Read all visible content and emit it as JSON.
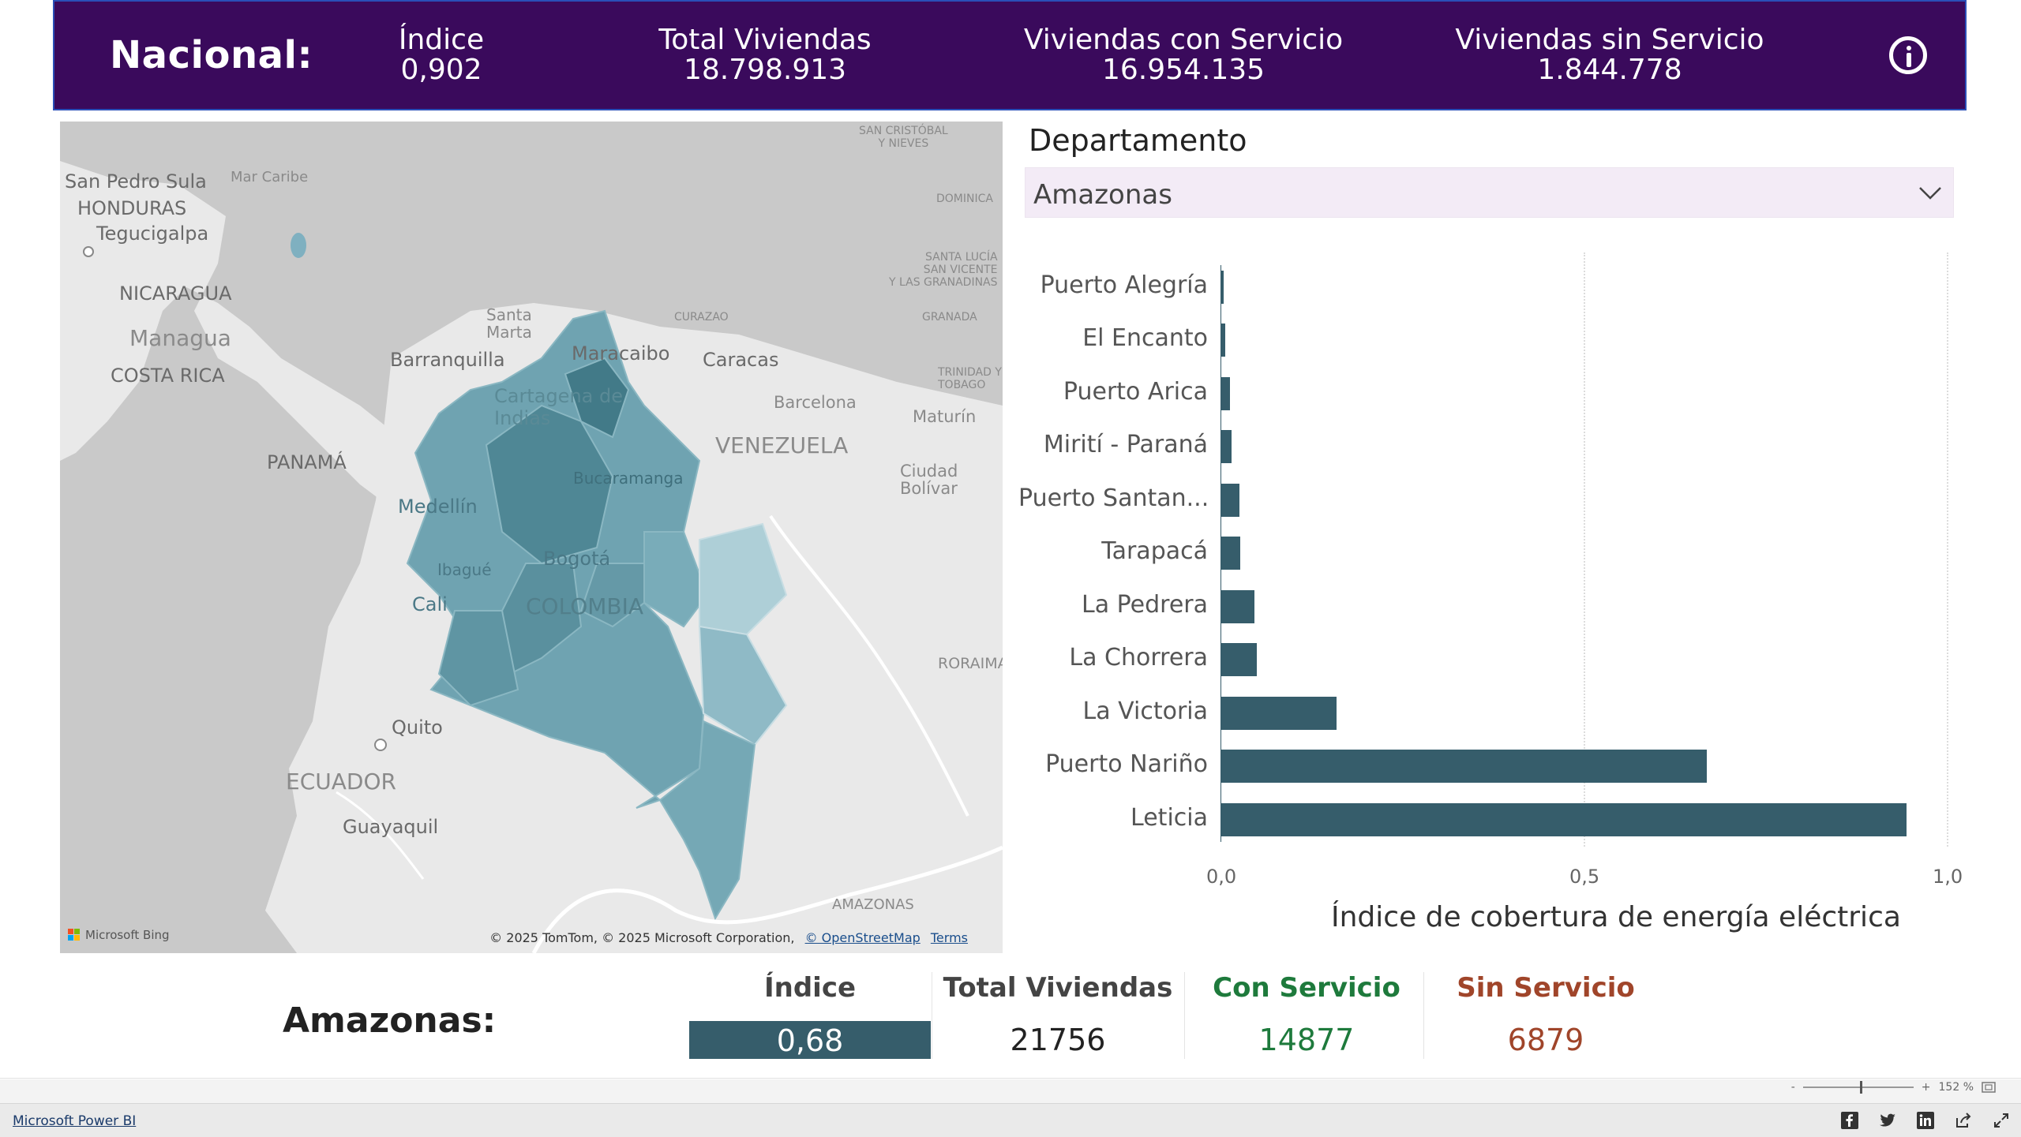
{
  "header": {
    "national_label": "Nacional:",
    "kpis": [
      {
        "label": "Índice",
        "value": "0,902"
      },
      {
        "label": "Total Viviendas",
        "value": "18.798.913"
      },
      {
        "label": "Viviendas con Servicio",
        "value": "16.954.135"
      },
      {
        "label": "Viviendas sin Servicio",
        "value": "1.844.778"
      }
    ],
    "info_icon": "info-circle-icon"
  },
  "map": {
    "labels": {
      "san_pedro_sula": "San Pedro Sula",
      "honduras": "HONDURAS",
      "tegucigalpa": "Tegucigalpa",
      "mar_caribe": "Mar Caribe",
      "nicaragua": "NICARAGUA",
      "managua": "Managua",
      "costa_rica": "COSTA RICA",
      "panama": "PANAMÁ",
      "santa_marta": "Santa\nMarta",
      "barranquilla": "Barranquilla",
      "maracaibo": "Maracaibo",
      "caracas": "Caracas",
      "curazao": "CURAZAO",
      "cartagena": "Cartagena de\nIndias",
      "barcelona": "Barcelona",
      "maturin": "Maturín",
      "venezuela": "VENEZUELA",
      "bucaramanga": "Bucaramanga",
      "ciudad_bolivar": "Ciudad\nBolívar",
      "medellin": "Medellín",
      "ibague": "Ibagué",
      "bogota": "Bogotá",
      "colombia": "COLOMBIA",
      "cali": "Cali",
      "roraima": "RORAIMA",
      "quito": "Quito",
      "ecuador": "ECUADOR",
      "guayaquil": "Guayaquil",
      "amazonas": "AMAZONAS",
      "san_cristobal": "SAN CRISTÓBAL\nY NIEVES",
      "dominica": "DOMINICA",
      "santa_lucia": "SANTA LUCÍA\nSAN VICENTE\nY LAS GRANADINAS",
      "granada": "GRANADA",
      "trinidad": "TRINIDAD Y\nTOBAGO"
    },
    "bing": "Microsoft Bing",
    "attribution": "© 2025 TomTom, © 2025 Microsoft Corporation,",
    "osm_link": "© OpenStreetMap",
    "terms_link": "Terms",
    "colors": {
      "land": "#e9e9e9",
      "water": "#c9c9c9",
      "region_dark": "#4f8795",
      "region_mid": "#6fa3b1",
      "region_light": "#aecfd7"
    }
  },
  "slicer": {
    "title": "Departamento",
    "selected": "Amazonas",
    "chevron_icon": "chevron-down-icon"
  },
  "chart_data": {
    "type": "bar",
    "orientation": "horizontal",
    "categories": [
      "Puerto Alegría",
      "El Encanto",
      "Puerto Arica",
      "Mirití - Paraná",
      "Puerto Santan...",
      "Tarapacá",
      "La Pedrera",
      "La Chorrera",
      "La Victoria",
      "Puerto Nariño",
      "Leticia"
    ],
    "values": [
      0.004,
      0.006,
      0.013,
      0.015,
      0.026,
      0.027,
      0.047,
      0.05,
      0.16,
      0.67,
      0.945
    ],
    "xlabel": "Índice de cobertura de energía eléctrica",
    "xlim": [
      0,
      1.0
    ],
    "xticks": [
      "0,0",
      "0,5",
      "1,0"
    ],
    "bar_color": "#365d6b",
    "grid": true
  },
  "selection": {
    "name": "Amazonas:",
    "headers": {
      "indice": "Índice",
      "total": "Total Viviendas",
      "con": "Con Servicio",
      "sin": "Sin Servicio"
    },
    "values": {
      "indice": "0,68",
      "total": "21756",
      "con": "14877",
      "sin": "6879"
    },
    "colors": {
      "indice_bg": "#365d6b",
      "con": "#1e7a3c",
      "sin": "#a0452a"
    }
  },
  "footer": {
    "zoom": "152 %",
    "minus": "-",
    "plus": "+",
    "powerbi_link": "Microsoft Power BI",
    "share_icons": [
      "facebook-icon",
      "twitter-icon",
      "linkedin-icon",
      "share-icon",
      "fullscreen-icon"
    ]
  }
}
